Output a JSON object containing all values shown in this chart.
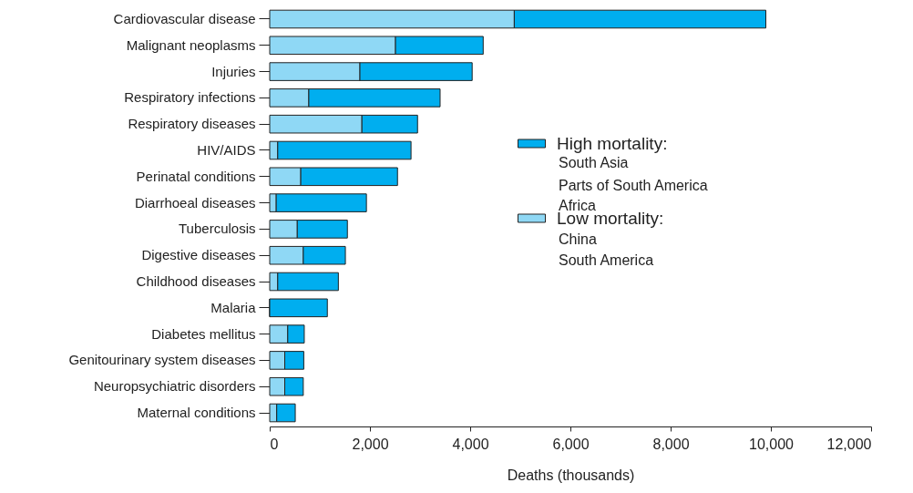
{
  "chart_data": {
    "type": "bar",
    "orientation": "horizontal",
    "stacked": true,
    "categories": [
      "Cardiovascular disease",
      "Malignant neoplasms",
      "Injuries",
      "Respiratory infections",
      "Respiratory diseases",
      "HIV/AIDS",
      "Perinatal conditions",
      "Diarrhoeal diseases",
      "Tuberculosis",
      "Digestive diseases",
      "Childhood diseases",
      "Malaria",
      "Diabetes mellitus",
      "Genitourinary system diseases",
      "Neuropsychiatric disorders",
      "Maternal conditions"
    ],
    "series": [
      {
        "name": "Low mortality:",
        "color": "#8fd8f5",
        "values": [
          4880,
          2510,
          1800,
          780,
          1840,
          160,
          620,
          130,
          550,
          670,
          160,
          0,
          360,
          300,
          300,
          140
        ]
      },
      {
        "name": "High mortality:",
        "color": "#00aeef",
        "values": [
          5020,
          1750,
          2240,
          2620,
          1110,
          2660,
          1930,
          1800,
          1000,
          840,
          1210,
          1150,
          330,
          380,
          370,
          370
        ]
      }
    ],
    "xlim": [
      0,
      12000
    ],
    "xticks": [
      0,
      {
        "value": 2000,
        "label": "2,000"
      },
      {
        "value": 4000,
        "label": "4,000"
      },
      {
        "value": 6000,
        "label": "6,000"
      },
      {
        "value": 8000,
        "label": "8,000"
      },
      {
        "value": 10000,
        "label": "10,000"
      },
      {
        "value": 12000,
        "label": "12,000"
      }
    ],
    "xlabel": "Deaths (thousands)",
    "grid": false,
    "legend": "right",
    "annotations": [
      "South Asia",
      "Parts of South America",
      "Africa",
      "China",
      "South America"
    ]
  }
}
